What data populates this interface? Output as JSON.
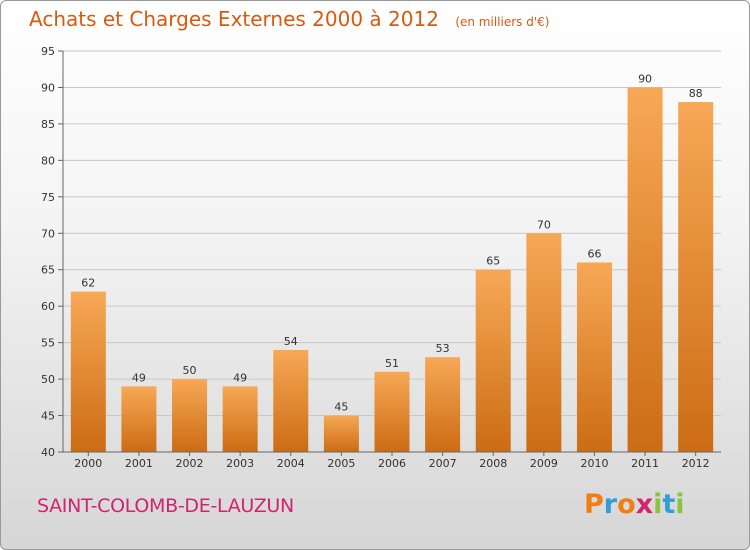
{
  "title": {
    "main": "Achats et Charges Externes 2000 à 2012",
    "unit": "(en milliers d'€)"
  },
  "commune": "SAINT-COLOMB-DE-LAUZUN",
  "brand": {
    "text": "Proxiti",
    "letters": [
      "P",
      "r",
      "o",
      "x",
      "i",
      "t",
      "i"
    ],
    "colors": [
      "#f07e13",
      "#2f9ed6",
      "#f07e13",
      "#d0246e",
      "#8bc53f",
      "#2f9ed6",
      "#8bc53f"
    ]
  },
  "colors": {
    "bar_light": "#f7a856",
    "bar_dark": "#cc6c14",
    "axis": "#666666",
    "grid": "#c8c8c8"
  },
  "chart_data": {
    "type": "bar",
    "categories": [
      "2000",
      "2001",
      "2002",
      "2003",
      "2004",
      "2005",
      "2006",
      "2007",
      "2008",
      "2009",
      "2010",
      "2011",
      "2012"
    ],
    "values": [
      62,
      49,
      50,
      49,
      54,
      45,
      51,
      53,
      65,
      70,
      66,
      90,
      88
    ],
    "title": "Achats et Charges Externes 2000 à 2012",
    "ylim": [
      40,
      95
    ],
    "yticks": [
      40,
      45,
      50,
      55,
      60,
      65,
      70,
      75,
      80,
      85,
      90,
      95
    ],
    "grid": true,
    "data_labels": true
  }
}
